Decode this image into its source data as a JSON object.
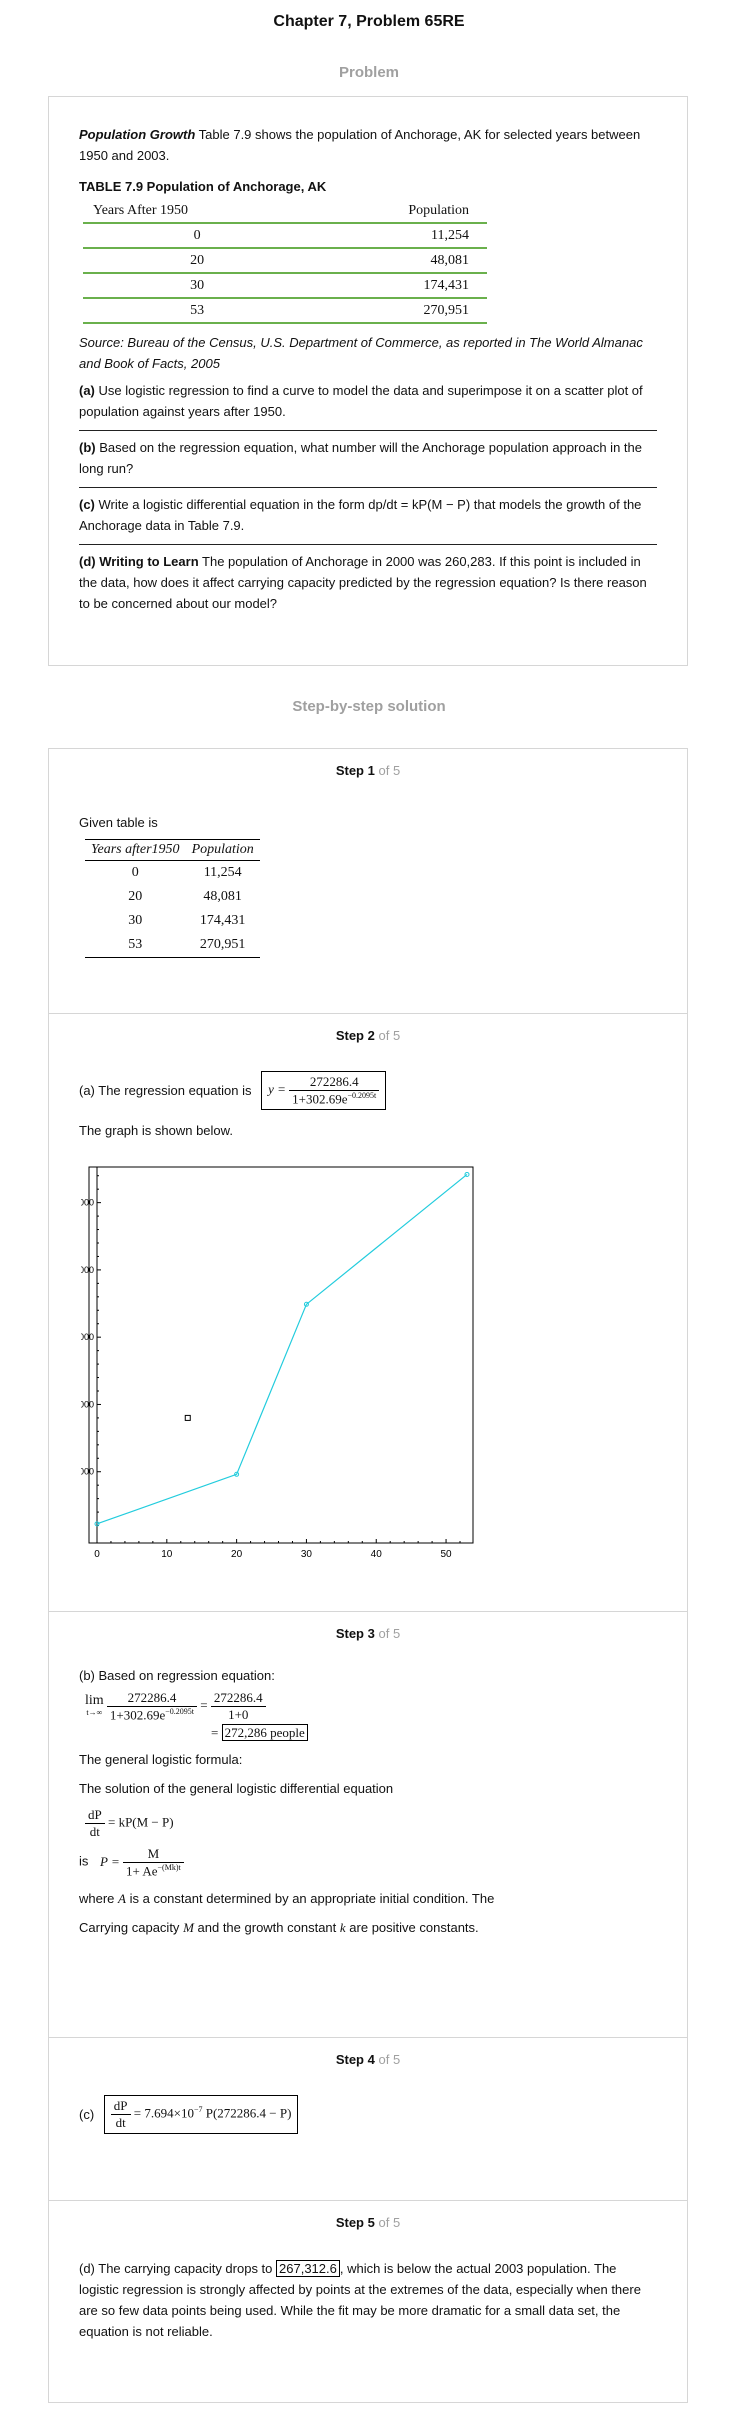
{
  "header": {
    "title": "Chapter 7, Problem 65RE",
    "problem_heading": "Problem",
    "solution_heading": "Step-by-step solution"
  },
  "problem": {
    "intro_bold": "Population Growth",
    "intro_text": " Table 7.9 shows the population of Anchorage, AK for selected years between 1950 and 2003.",
    "table_caption": "TABLE 7.9 Population of Anchorage, AK",
    "table_headers": [
      "Years After 1950",
      "Population"
    ],
    "table_rows": [
      [
        "0",
        "11,254"
      ],
      [
        "20",
        "48,081"
      ],
      [
        "30",
        "174,431"
      ],
      [
        "53",
        "270,951"
      ]
    ],
    "source": "Source: Bureau of the Census, U.S. Department of Commerce, as reported in The World Almanac and Book of Facts, 2005",
    "parts": [
      {
        "label": "(a)",
        "text": " Use logistic regression to find a curve to model the data and superimpose it on a scatter plot of population against years after 1950."
      },
      {
        "label": "(b)",
        "text": " Based on the regression equation, what number will the Anchorage population approach in the long run?"
      },
      {
        "label": "(c)",
        "text": " Write a logistic differential equation in the form dp/dt = kP(M − P) that models the growth of the Anchorage data in Table 7.9."
      },
      {
        "label": "(d) Writing to Learn",
        "text": " The population of Anchorage in 2000 was 260,283. If this point is included in the data, how does it affect carrying capacity predicted by the regression equation? Is there reason to be concerned about our model?"
      }
    ]
  },
  "steps": {
    "step_word": "Step",
    "of_total": "of 5",
    "numbers": [
      "1",
      "2",
      "3",
      "4",
      "5"
    ],
    "s1": {
      "text": "Given table is",
      "headers": [
        "Years after1950",
        "Population"
      ],
      "rows": [
        [
          "0",
          "11,254"
        ],
        [
          "20",
          "48,081"
        ],
        [
          "30",
          "174,431"
        ],
        [
          "53",
          "270,951"
        ]
      ]
    },
    "s2": {
      "text_a": "(a) The regression equation is",
      "eq_lhs": "y =",
      "eq_num": "272286.4",
      "eq_den": "1+302.69e",
      "eq_exp": "−0.2095t",
      "graph_text": "The graph is shown below."
    },
    "s3": {
      "intro": "(b) Based on regression equation:",
      "lim": "lim",
      "lim_sub": "t→∞",
      "num": "272286.4",
      "den": "1+302.69e",
      "den_exp": "−0.2095t",
      "eq": "=",
      "num2": "272286.4",
      "den2": "1+0",
      "result": "272,286 people",
      "general": "The general logistic formula:",
      "solution": "The solution of the general logistic differential equation",
      "de_num": "dP",
      "de_den": "dt",
      "de_rhs": "= kP(M − P)",
      "is": "is",
      "sol_lhs": "P =",
      "sol_num": "M",
      "sol_den": "1+ Ae",
      "sol_exp": "−(Mk)t",
      "where1": "where",
      "A": "A",
      "where2": " is a constant determined by an appropriate initial condition. The",
      "cc1": "Carrying capacity",
      "M": "M",
      "cc2": " and the growth constant",
      "k": "k",
      "cc3": " are positive constants."
    },
    "s4": {
      "label": "(c)",
      "num": "dP",
      "den": "dt",
      "rhs_a": "= 7.694×10",
      "rhs_exp": "−7",
      "rhs_b": " P(272286.4 − P)"
    },
    "s5": {
      "t1": "(d) The carrying capacity drops to ",
      "value": "267,312.6",
      "t2": ", which is below the actual 2003 population. The logistic regression is strongly affected by points at the extremes of the data, especially when there are so few data points being used. While the fit may be more dramatic for a small data set, the equation is not reliable."
    }
  },
  "chart_data": {
    "type": "line",
    "x": [
      0,
      20,
      30,
      53
    ],
    "y": [
      11254,
      48081,
      174431,
      270951
    ],
    "extra_marker": [
      13,
      90000
    ],
    "xlim": [
      0,
      53
    ],
    "ylim": [
      0,
      275000
    ],
    "xticks": [
      "0",
      "10",
      "20",
      "30",
      "40",
      "50"
    ],
    "yticks": [
      "50000",
      "100000",
      "150000",
      "200000",
      "250000"
    ],
    "line_color": "#22ccdd"
  }
}
